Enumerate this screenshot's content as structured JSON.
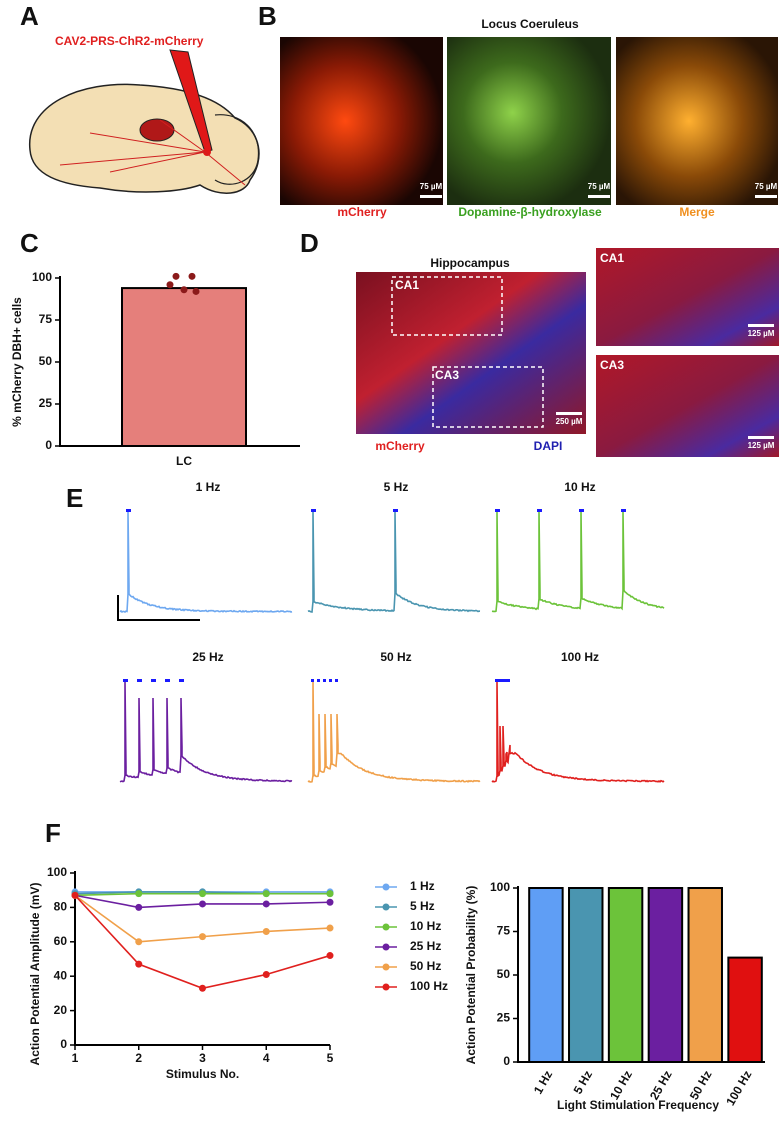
{
  "figure": {
    "A": {
      "letter": "A",
      "virus": "CAV2-PRS-ChR2-mCherry"
    },
    "B": {
      "letter": "B",
      "title": "Locus Coeruleus",
      "scales": [
        "75 µM",
        "75 µM",
        "75 µM"
      ],
      "labels": [
        "mCherry",
        "Dopamine-β-hydroxylase",
        "Merge"
      ]
    },
    "C": {
      "letter": "C"
    },
    "D": {
      "letter": "D",
      "title": "Hippocampus",
      "box1": "CA1",
      "box2": "CA3",
      "scale_main": "250 µM",
      "inset1": "CA1",
      "inset2": "CA3",
      "scale_inset1": "125 µM",
      "scale_inset2": "125 µM",
      "labels": [
        "mCherry",
        "DAPI"
      ]
    },
    "E": {
      "letter": "E",
      "labels": [
        "1 Hz",
        "5 Hz",
        "10 Hz",
        "25 Hz",
        "50 Hz",
        "100 Hz"
      ]
    },
    "F": {
      "letter": "F"
    }
  },
  "chart_data": [
    {
      "type": "bar",
      "ylabel": "% mCherry DBH+ cells",
      "categories": [
        "LC"
      ],
      "values": [
        94
      ],
      "color": "#e57f7b",
      "points": [
        101,
        101,
        96,
        93,
        92
      ],
      "point_color": "#8b1a1a",
      "ylim": [
        0,
        100
      ],
      "yticks": [
        0,
        25,
        50,
        75,
        100
      ]
    },
    {
      "type": "line",
      "xlabel": "Stimulus No.",
      "ylabel": "Action Potential Amplitude (mV)",
      "x": [
        1,
        2,
        3,
        4,
        5
      ],
      "xlim": [
        1,
        5
      ],
      "xticks": [
        1,
        2,
        3,
        4,
        5
      ],
      "ylim": [
        0,
        100
      ],
      "yticks": [
        0,
        20,
        40,
        60,
        80,
        100
      ],
      "series": [
        {
          "name": "1 Hz",
          "color": "#6ea8f0",
          "values": [
            89,
            89,
            89,
            89,
            89
          ]
        },
        {
          "name": "5 Hz",
          "color": "#4a95b0",
          "values": [
            88,
            89,
            89,
            88,
            88
          ]
        },
        {
          "name": "10 Hz",
          "color": "#6cc33a",
          "values": [
            87,
            88,
            88,
            88,
            88
          ]
        },
        {
          "name": "25 Hz",
          "color": "#6b1fa0",
          "values": [
            87,
            80,
            82,
            82,
            83
          ]
        },
        {
          "name": "50 Hz",
          "color": "#f0a04a",
          "values": [
            87,
            60,
            63,
            66,
            68
          ]
        },
        {
          "name": "100 Hz",
          "color": "#e0201e",
          "values": [
            87,
            47,
            33,
            41,
            52
          ]
        }
      ]
    },
    {
      "type": "bar",
      "xlabel": "Light Stimulation Frequency",
      "ylabel": "Action Potential Probability (%)",
      "categories": [
        "1 Hz",
        "5 Hz",
        "10 Hz",
        "25 Hz",
        "50 Hz",
        "100 Hz"
      ],
      "values": [
        100,
        100,
        100,
        100,
        100,
        60
      ],
      "colors": [
        "#5f9ef5",
        "#4a95b0",
        "#6cc33a",
        "#6b1fa0",
        "#f0a04a",
        "#e01010"
      ],
      "ylim": [
        0,
        100
      ],
      "yticks": [
        0,
        25,
        50,
        75,
        100
      ]
    }
  ]
}
